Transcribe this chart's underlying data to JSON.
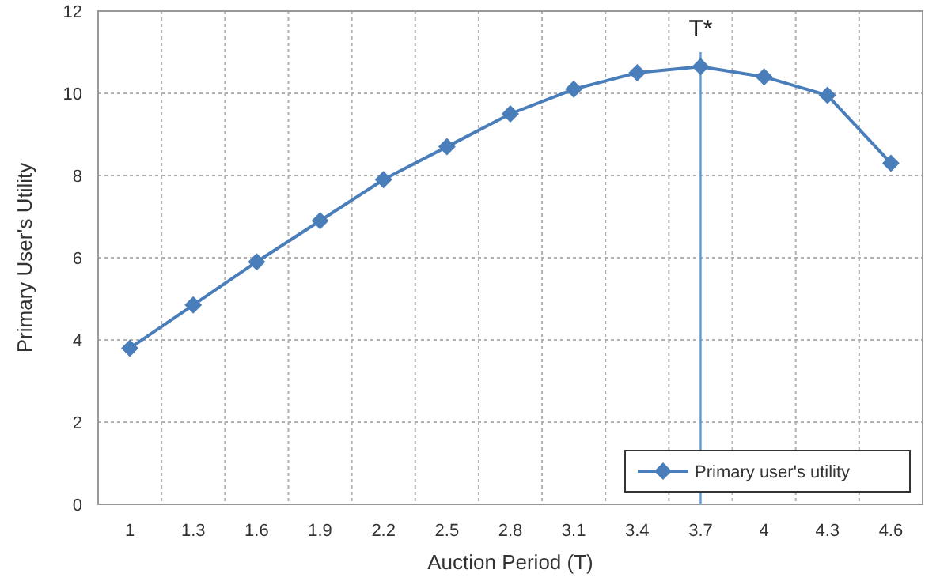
{
  "chart_data": {
    "type": "line",
    "xlabel": "Auction Period (T)",
    "ylabel": "Primary User's Utility",
    "categories": [
      "1",
      "1.3",
      "1.6",
      "1.9",
      "2.2",
      "2.5",
      "2.8",
      "3.1",
      "3.4",
      "3.7",
      "4",
      "4.3",
      "4.6"
    ],
    "series": [
      {
        "name": "Primary user's utility",
        "color": "#4a7ebb",
        "values": [
          3.8,
          4.85,
          5.9,
          6.9,
          7.9,
          8.7,
          9.5,
          10.1,
          10.5,
          10.65,
          10.4,
          9.95,
          8.3
        ]
      }
    ],
    "ylim": [
      0,
      12
    ],
    "yticks": [
      0,
      2,
      4,
      6,
      8,
      10,
      12
    ],
    "grid": true,
    "legend": "bottom right",
    "marker": "diamond",
    "line_style": "solid",
    "ref_lines": [
      {
        "axis": "x",
        "value": "3.7",
        "label": "T*",
        "color": "#5b9bd5"
      }
    ]
  }
}
